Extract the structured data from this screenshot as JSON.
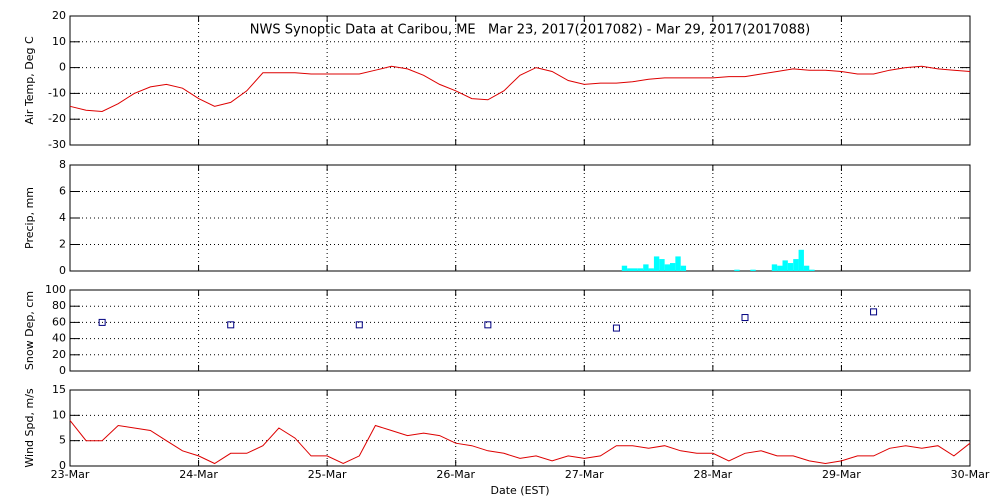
{
  "chart_data": [
    {
      "type": "line",
      "title": "NWS Synoptic Data at Caribou, ME   Mar 23, 2017(2017082) - Mar 29, 2017(2017088)",
      "ylabel": "Air Temp, Deg C",
      "color": "#dd0000",
      "grid": true,
      "xlim": [
        0,
        168
      ],
      "xticks": [
        0,
        24,
        48,
        72,
        96,
        120,
        144,
        168
      ],
      "ylim": [
        -30,
        20
      ],
      "yticks": [
        -30,
        -20,
        -10,
        0,
        10,
        20
      ],
      "x": [
        0,
        3,
        6,
        9,
        12,
        15,
        18,
        21,
        24,
        27,
        30,
        33,
        36,
        39,
        42,
        45,
        48,
        51,
        54,
        57,
        60,
        63,
        66,
        69,
        72,
        75,
        78,
        81,
        84,
        87,
        90,
        93,
        96,
        99,
        102,
        105,
        108,
        111,
        114,
        117,
        120,
        123,
        126,
        129,
        132,
        135,
        138,
        141,
        144,
        147,
        150,
        153,
        156,
        159,
        162,
        165,
        168
      ],
      "values": [
        -15,
        -16.5,
        -17,
        -14,
        -10,
        -7.5,
        -6.5,
        -8,
        -12,
        -15,
        -13.5,
        -9,
        -2,
        -2,
        -2,
        -2.5,
        -2.5,
        -2.5,
        -2.5,
        -1,
        0.5,
        -0.5,
        -3,
        -6.5,
        -9,
        -12,
        -12.5,
        -9,
        -3,
        0,
        -1.5,
        -5,
        -6.5,
        -6,
        -6,
        -5.5,
        -4.5,
        -4,
        -4,
        -4,
        -4,
        -3.5,
        -3.5,
        -2.5,
        -1.5,
        -0.5,
        -1,
        -1,
        -1.5,
        -2.5,
        -2.5,
        -1,
        0,
        0.5,
        -0.5,
        -1,
        -1.5
      ]
    },
    {
      "type": "bar",
      "ylabel": "Precip, mm",
      "color": "#00ffff",
      "grid": true,
      "xlim": [
        0,
        168
      ],
      "xticks": [
        0,
        24,
        48,
        72,
        96,
        120,
        144,
        168
      ],
      "ylim": [
        0,
        8
      ],
      "yticks": [
        0,
        2,
        4,
        6,
        8
      ],
      "x": [
        103,
        104,
        105,
        106,
        107,
        108,
        109,
        110,
        111,
        112,
        113,
        114,
        124,
        127,
        131,
        132,
        133,
        134,
        135,
        136,
        137,
        138
      ],
      "values": [
        0.4,
        0.2,
        0.2,
        0.2,
        0.5,
        0.2,
        1.1,
        0.9,
        0.5,
        0.6,
        1.1,
        0.4,
        0.1,
        0.1,
        0.5,
        0.4,
        0.8,
        0.6,
        0.9,
        1.6,
        0.4,
        0.1
      ]
    },
    {
      "type": "scatter",
      "ylabel": "Snow Dep, cm",
      "color": "#000080",
      "grid": true,
      "xlim": [
        0,
        168
      ],
      "xticks": [
        0,
        24,
        48,
        72,
        96,
        120,
        144,
        168
      ],
      "ylim": [
        0,
        100
      ],
      "yticks": [
        0,
        20,
        40,
        60,
        80,
        100
      ],
      "x": [
        6,
        30,
        54,
        78,
        102,
        126,
        150
      ],
      "values": [
        60,
        57,
        57,
        57,
        53,
        66,
        73
      ]
    },
    {
      "type": "line",
      "ylabel": "Wind Spd, m/s",
      "xlabel": "Date (EST)",
      "color": "#dd0000",
      "grid": true,
      "xlim": [
        0,
        168
      ],
      "xticks": [
        {
          "value": 0,
          "label": "23-Mar"
        },
        {
          "value": 24,
          "label": "24-Mar"
        },
        {
          "value": 48,
          "label": "25-Mar"
        },
        {
          "value": 72,
          "label": "26-Mar"
        },
        {
          "value": 96,
          "label": "27-Mar"
        },
        {
          "value": 120,
          "label": "28-Mar"
        },
        {
          "value": 144,
          "label": "29-Mar"
        },
        {
          "value": 168,
          "label": "30-Mar"
        }
      ],
      "ylim": [
        0,
        15
      ],
      "yticks": [
        0,
        5,
        10,
        15
      ],
      "x": [
        0,
        3,
        6,
        9,
        12,
        15,
        18,
        21,
        24,
        27,
        30,
        33,
        36,
        39,
        42,
        45,
        48,
        51,
        54,
        57,
        60,
        63,
        66,
        69,
        72,
        75,
        78,
        81,
        84,
        87,
        90,
        93,
        96,
        99,
        102,
        105,
        108,
        111,
        114,
        117,
        120,
        123,
        126,
        129,
        132,
        135,
        138,
        141,
        144,
        147,
        150,
        153,
        156,
        159,
        162,
        165,
        168
      ],
      "values": [
        9,
        5,
        5,
        8,
        7.5,
        7,
        5,
        3,
        2,
        0.5,
        2.5,
        2.5,
        4,
        7.5,
        5.5,
        2,
        2,
        0.5,
        2,
        8,
        7,
        6,
        6.5,
        6,
        4.5,
        4,
        3,
        2.5,
        1.5,
        2,
        1,
        2,
        1.5,
        2,
        4,
        4,
        3.5,
        4,
        3,
        2.5,
        2.5,
        1,
        2.5,
        3,
        2,
        2,
        1,
        0.5,
        1,
        2,
        2,
        3.5,
        4,
        3.5,
        4,
        2,
        4.5
      ]
    }
  ]
}
